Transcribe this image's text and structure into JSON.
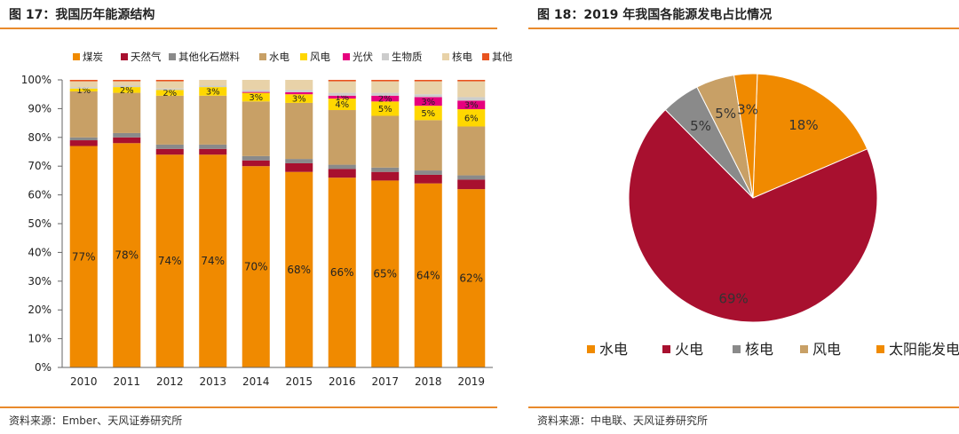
{
  "figures": [
    {
      "title": "图 17：我国历年能源结构",
      "source": "资料来源：Ember、天风证券研究所"
    },
    {
      "title": "图 18：2019 年我国各能源发电占比情况",
      "source": "资料来源：中电联、天风证券研究所"
    }
  ],
  "chart_data": [
    {
      "type": "bar",
      "stacked": true,
      "title": "图 17：我国历年能源结构",
      "categories": [
        "2010",
        "2011",
        "2012",
        "2013",
        "2014",
        "2015",
        "2016",
        "2017",
        "2018",
        "2019"
      ],
      "ylim": [
        0,
        100
      ],
      "yticks": [
        "0%",
        "10%",
        "20%",
        "30%",
        "40%",
        "50%",
        "60%",
        "70%",
        "80%",
        "90%",
        "100%"
      ],
      "legend_position": "top",
      "series": [
        {
          "name": "煤炭",
          "color": "#f08a00",
          "values": [
            77,
            78,
            74,
            74,
            70,
            68,
            66,
            65,
            64,
            62
          ],
          "labels": [
            "77%",
            "78%",
            "74%",
            "74%",
            "70%",
            "68%",
            "66%",
            "65%",
            "64%",
            "62%"
          ]
        },
        {
          "name": "天然气",
          "color": "#a8102f",
          "values": [
            2,
            2,
            2,
            2,
            2,
            3,
            3,
            3,
            3,
            3.3
          ],
          "labels": [
            "",
            "",
            "",
            "",
            "",
            "",
            "",
            "",
            "",
            ""
          ]
        },
        {
          "name": "其他化石燃料",
          "color": "#8a8a8a",
          "values": [
            1,
            1.5,
            1.5,
            1.5,
            1.5,
            1.5,
            1.5,
            1.5,
            1.5,
            1.5
          ],
          "labels": [
            "",
            "",
            "",
            "",
            "",
            "",
            "",
            "",
            "",
            ""
          ]
        },
        {
          "name": "水电",
          "color": "#c8a066",
          "values": [
            16,
            14,
            17,
            17,
            19,
            19.5,
            19,
            18,
            17.5,
            17
          ],
          "labels": [
            "",
            "",
            "",
            "",
            "",
            "",
            "",
            "",
            "",
            ""
          ]
        },
        {
          "name": "风电",
          "color": "#ffd700",
          "values": [
            1,
            2,
            2,
            3,
            3,
            3,
            4,
            5,
            5,
            6
          ],
          "labels": [
            "1%",
            "2%",
            "2%",
            "3%",
            "3%",
            "3%",
            "4%",
            "5%",
            "5%",
            "6%"
          ]
        },
        {
          "name": "光伏",
          "color": "#e6007e",
          "values": [
            0,
            0,
            0,
            0,
            0.3,
            0.7,
            1,
            2,
            3,
            3
          ],
          "labels": [
            "",
            "",
            "",
            "",
            "",
            "",
            "1%",
            "2%",
            "3%",
            "3%"
          ]
        },
        {
          "name": "生物质",
          "color": "#cccccc",
          "values": [
            0.5,
            0.5,
            0.5,
            0.5,
            0.7,
            0.8,
            1,
            1,
            1,
            1.2
          ],
          "labels": [
            "",
            "",
            "",
            "",
            "",
            "",
            "",
            "",
            "",
            ""
          ]
        },
        {
          "name": "核电",
          "color": "#e8d2a8",
          "values": [
            2,
            1.5,
            2.5,
            2,
            3.5,
            3.5,
            4,
            4,
            4.5,
            5.5
          ],
          "labels": [
            "",
            "",
            "",
            "",
            "",
            "",
            "",
            "",
            "",
            ""
          ]
        },
        {
          "name": "其他",
          "color": "#e8531f",
          "values": [
            0.5,
            0.5,
            0.5,
            0,
            0,
            0,
            0.5,
            0.5,
            0.5,
            0.5
          ],
          "labels": [
            "",
            "",
            "",
            "",
            "",
            "",
            "",
            "",
            "",
            ""
          ]
        }
      ]
    },
    {
      "type": "pie",
      "title": "图 18：2019 年我国各能源发电占比情况",
      "legend_position": "bottom",
      "slices": [
        {
          "name": "水电",
          "value": 18,
          "label": "18%",
          "color": "#f08a00"
        },
        {
          "name": "火电",
          "value": 69,
          "label": "69%",
          "color": "#a8102f"
        },
        {
          "name": "核电",
          "value": 5,
          "label": "5%",
          "color": "#8a8a8a"
        },
        {
          "name": "风电",
          "value": 5,
          "label": "5%",
          "color": "#c8a066"
        },
        {
          "name": "太阳能发电",
          "value": 3,
          "label": "3%",
          "color": "#f08a00"
        }
      ]
    }
  ]
}
